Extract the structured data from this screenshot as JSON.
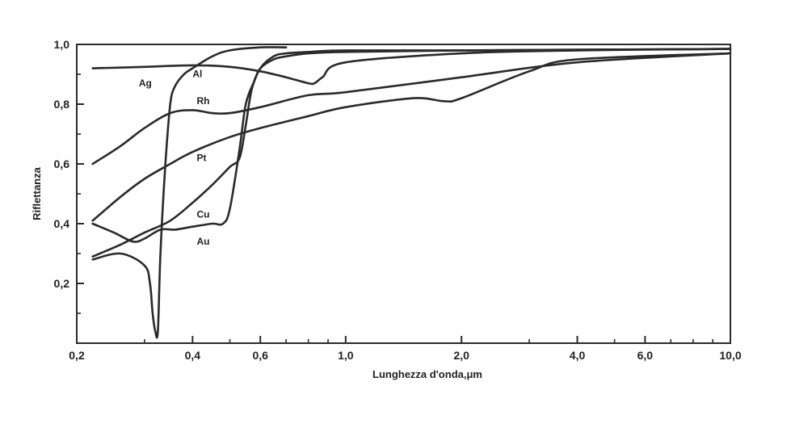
{
  "chart_data": {
    "type": "line",
    "xlabel": "Lunghezza d'onda,μm",
    "ylabel": "Riflettanza",
    "x_scale": "log",
    "xlim": [
      0.2,
      10.0
    ],
    "ylim": [
      0.0,
      1.0
    ],
    "x_ticks": [
      {
        "value": 0.2,
        "label": "0,2"
      },
      {
        "value": 0.4,
        "label": "0,4"
      },
      {
        "value": 0.6,
        "label": "0,6"
      },
      {
        "value": 1.0,
        "label": "1,0"
      },
      {
        "value": 2.0,
        "label": "2,0"
      },
      {
        "value": 4.0,
        "label": "4,0"
      },
      {
        "value": 6.0,
        "label": "6,0"
      },
      {
        "value": 10.0,
        "label": "10,0"
      }
    ],
    "x_minor_ticks": [
      0.3,
      0.5,
      0.7,
      0.8,
      0.9,
      3.0,
      5.0,
      7.0,
      8.0,
      9.0
    ],
    "y_ticks": [
      {
        "value": 0.2,
        "label": "0,2"
      },
      {
        "value": 0.4,
        "label": "0,4"
      },
      {
        "value": 0.6,
        "label": "0,6"
      },
      {
        "value": 0.8,
        "label": "0,8"
      },
      {
        "value": 1.0,
        "label": "1,0"
      }
    ],
    "y_minor_ticks": [
      0.1,
      0.3,
      0.5,
      0.7,
      0.9
    ],
    "grid": false,
    "series": [
      {
        "name": "Ag",
        "label_at": [
          0.29,
          0.86
        ],
        "x": [
          0.22,
          0.26,
          0.3,
          0.31,
          0.315,
          0.32,
          0.325,
          0.33,
          0.34,
          0.35,
          0.36,
          0.38,
          0.4,
          0.45,
          0.5,
          0.6,
          0.7
        ],
        "y": [
          0.28,
          0.3,
          0.26,
          0.2,
          0.1,
          0.04,
          0.04,
          0.3,
          0.6,
          0.8,
          0.86,
          0.9,
          0.92,
          0.96,
          0.98,
          0.99,
          0.99
        ]
      },
      {
        "name": "Al",
        "label_at": [
          0.4,
          0.89
        ],
        "x": [
          0.22,
          0.3,
          0.4,
          0.5,
          0.6,
          0.7,
          0.8,
          0.83,
          0.87,
          1.0,
          2.0,
          4.0,
          10.0
        ],
        "y": [
          0.92,
          0.925,
          0.93,
          0.925,
          0.91,
          0.89,
          0.87,
          0.87,
          0.89,
          0.94,
          0.97,
          0.98,
          0.985
        ]
      },
      {
        "name": "Rh",
        "label_at": [
          0.41,
          0.8
        ],
        "x": [
          0.22,
          0.26,
          0.3,
          0.35,
          0.4,
          0.45,
          0.5,
          0.6,
          0.8,
          1.0,
          2.0,
          4.0,
          10.0
        ],
        "y": [
          0.6,
          0.66,
          0.72,
          0.77,
          0.78,
          0.77,
          0.77,
          0.79,
          0.83,
          0.84,
          0.89,
          0.94,
          0.97
        ]
      },
      {
        "name": "Pt",
        "label_at": [
          0.41,
          0.61
        ],
        "x": [
          0.22,
          0.26,
          0.3,
          0.35,
          0.4,
          0.5,
          0.6,
          0.8,
          1.0,
          1.5,
          1.8,
          2.0,
          3.0,
          4.0,
          10.0
        ],
        "y": [
          0.41,
          0.49,
          0.55,
          0.6,
          0.64,
          0.69,
          0.72,
          0.76,
          0.79,
          0.82,
          0.81,
          0.82,
          0.91,
          0.95,
          0.97
        ]
      },
      {
        "name": "Cu",
        "label_at": [
          0.41,
          0.42
        ],
        "x": [
          0.22,
          0.26,
          0.3,
          0.35,
          0.4,
          0.45,
          0.5,
          0.53,
          0.55,
          0.57,
          0.6,
          0.65,
          0.7,
          0.8,
          1.0,
          2.0,
          10.0
        ],
        "y": [
          0.29,
          0.33,
          0.37,
          0.41,
          0.47,
          0.53,
          0.59,
          0.62,
          0.73,
          0.85,
          0.92,
          0.96,
          0.97,
          0.975,
          0.98,
          0.98,
          0.985
        ]
      },
      {
        "name": "Au",
        "label_at": [
          0.41,
          0.33
        ],
        "x": [
          0.22,
          0.25,
          0.28,
          0.3,
          0.33,
          0.36,
          0.4,
          0.45,
          0.48,
          0.5,
          0.53,
          0.55,
          0.58,
          0.6,
          0.65,
          0.7,
          0.8,
          1.0,
          2.0,
          10.0
        ],
        "y": [
          0.4,
          0.37,
          0.34,
          0.35,
          0.38,
          0.38,
          0.39,
          0.4,
          0.4,
          0.45,
          0.65,
          0.8,
          0.88,
          0.92,
          0.95,
          0.96,
          0.97,
          0.975,
          0.98,
          0.985
        ]
      }
    ]
  }
}
